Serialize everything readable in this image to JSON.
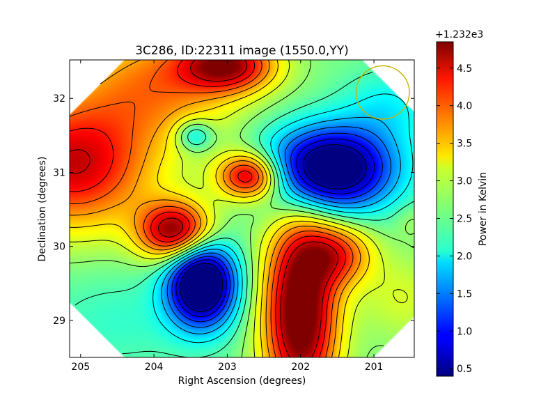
{
  "chart_data": {
    "type": "heatmap",
    "title": "3C286, ID:22311 image (1550.0,YY)",
    "xlabel": "Right Ascension (degrees)",
    "ylabel": "Declination (degrees)",
    "x_axis_reversed": true,
    "xlim": [
      205.15,
      200.45
    ],
    "ylim": [
      28.5,
      32.52
    ],
    "xticks": [
      205,
      204,
      203,
      202,
      201
    ],
    "xtick_labels": [
      "205",
      "204",
      "203",
      "202",
      "201"
    ],
    "yticks": [
      29,
      30,
      31,
      32
    ],
    "ytick_labels": [
      "29",
      "30",
      "31",
      "32"
    ],
    "colorbar": {
      "label": "Power in Kelvin",
      "offset_label": "+1.232e3",
      "range": [
        0.4,
        4.85
      ],
      "ticks": [
        0.5,
        1.0,
        1.5,
        2.0,
        2.5,
        3.0,
        3.5,
        4.0,
        4.5
      ],
      "tick_labels": [
        "0.5",
        "1.0",
        "1.5",
        "2.0",
        "2.5",
        "3.0",
        "3.5",
        "4.0",
        "4.5"
      ],
      "colormap": "jet"
    },
    "baseline": 2.6,
    "features": [
      {
        "ra": 205.1,
        "dec": 31.1,
        "amp": 1.9,
        "sx": 0.75,
        "sy": 0.6
      },
      {
        "ra": 203.7,
        "dec": 30.2,
        "amp": 2.3,
        "sx": 0.35,
        "sy": 0.28
      },
      {
        "ra": 202.7,
        "dec": 30.95,
        "amp": 2.1,
        "sx": 0.3,
        "sy": 0.22
      },
      {
        "ra": 203.0,
        "dec": 32.45,
        "amp": 1.9,
        "sx": 0.45,
        "sy": 0.25
      },
      {
        "ra": 203.95,
        "dec": 32.2,
        "amp": 1.1,
        "sx": 0.8,
        "sy": 0.55
      },
      {
        "ra": 203.45,
        "dec": 31.5,
        "amp": -0.9,
        "sx": 0.18,
        "sy": 0.15
      },
      {
        "ra": 201.6,
        "dec": 31.05,
        "amp": -2.8,
        "sx": 0.6,
        "sy": 0.4
      },
      {
        "ra": 203.35,
        "dec": 29.5,
        "amp": -3.0,
        "sx": 0.32,
        "sy": 0.4
      },
      {
        "ra": 202.0,
        "dec": 29.1,
        "amp": 2.6,
        "sx": 0.35,
        "sy": 0.9
      },
      {
        "ra": 201.5,
        "dec": 29.9,
        "amp": 1.3,
        "sx": 0.35,
        "sy": 0.3
      },
      {
        "ra": 204.5,
        "dec": 29.0,
        "amp": -0.3,
        "sx": 0.8,
        "sy": 0.5
      },
      {
        "ra": 200.5,
        "dec": 30.35,
        "amp": 0.2,
        "sx": 0.15,
        "sy": 0.15
      },
      {
        "ra": 200.8,
        "dec": 31.9,
        "amp": -0.5,
        "sx": 0.45,
        "sy": 0.35
      },
      {
        "ra": 200.6,
        "dec": 29.3,
        "amp": 0.4,
        "sx": 0.4,
        "sy": 0.4
      }
    ],
    "contour_levels": [
      0.6,
      0.9,
      1.2,
      1.5,
      1.8,
      2.1,
      2.4,
      2.7,
      3.0,
      3.3,
      3.6,
      3.9,
      4.2,
      4.5
    ],
    "clip_octagon": {
      "cut_left_right_top": 0.35,
      "cut_bottom_left": 0.5,
      "cut_bottom_right": 0.35
    },
    "beam_circle": {
      "ra": 200.88,
      "dec": 32.08,
      "radius_deg": 0.36,
      "color": "#c8b400"
    }
  }
}
